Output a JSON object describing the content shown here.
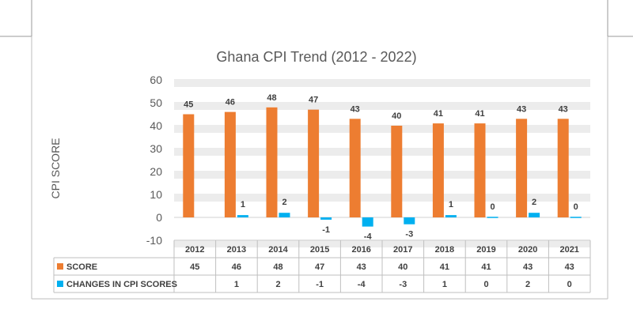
{
  "chart_data": {
    "type": "bar",
    "title": "Ghana CPI Trend (2012 - 2022)",
    "ylabel": "CPI SCORE",
    "ylim": [
      -10,
      60
    ],
    "yticks": [
      -10,
      0,
      10,
      20,
      30,
      40,
      50,
      60
    ],
    "grid": true,
    "legend": "data-table",
    "categories": [
      "2012",
      "2013",
      "2014",
      "2015",
      "2016",
      "2017",
      "2018",
      "2019",
      "2020",
      "2021"
    ],
    "series": [
      {
        "name": "SCORE",
        "color": "#ED7D31",
        "values": [
          45,
          46,
          48,
          47,
          43,
          40,
          41,
          41,
          43,
          43
        ],
        "labels": [
          "45",
          "46",
          "48",
          "47",
          "43",
          "40",
          "41",
          "41",
          "43",
          "43"
        ]
      },
      {
        "name": "CHANGES IN CPI SCORES",
        "color": "#00B0F0",
        "values": [
          null,
          1,
          2,
          -1,
          -4,
          -3,
          1,
          0,
          2,
          0
        ],
        "labels": [
          "",
          "1",
          "2",
          "-1",
          "-4",
          "-3",
          "1",
          "0",
          "2",
          "0"
        ]
      }
    ]
  }
}
